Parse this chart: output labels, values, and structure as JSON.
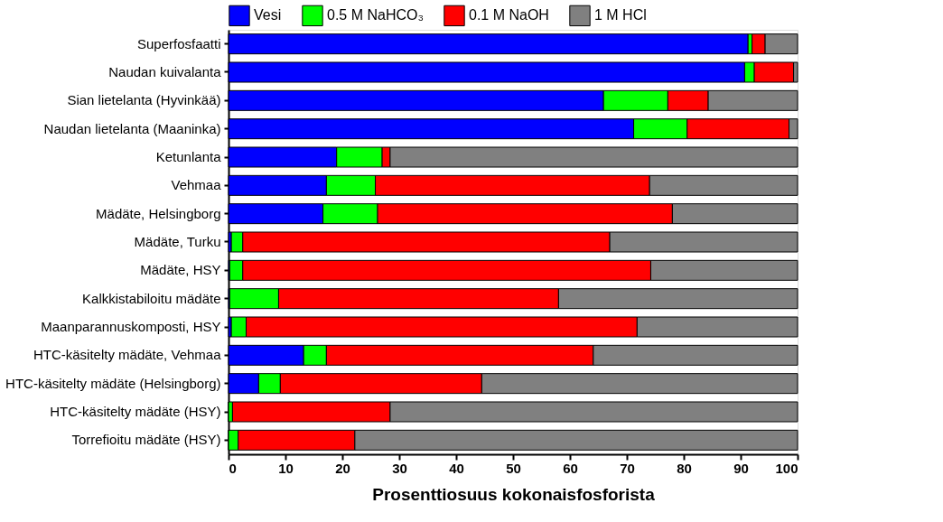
{
  "chart_data": {
    "type": "bar",
    "orientation": "horizontal",
    "stacked": true,
    "xlabel": "Prosenttiosuus kokonaisfosforista",
    "categories": [
      "Superfosfaatti",
      "Naudan kuivalanta",
      "Sian lietelanta (Hyvinkää)",
      "Naudan lietelanta (Maaninka)",
      "Ketunlanta",
      "Vehmaa",
      "Mädäte, Helsingborg",
      "Mädäte, Turku",
      "Mädäte, HSY",
      "Kalkkistabiloitu mädäte",
      "Maanparannuskomposti, HSY",
      "HTC-käsitelty mädäte, Vehmaa",
      "HTC-käsitelty mädäte (Helsingborg)",
      "HTC-käsitelty mädäte (HSY)",
      "Torrefioitu mädäte (HSY)"
    ],
    "series": [
      {
        "name": "Vesi",
        "color": "#0000ff",
        "values": [
          91.3,
          90.7,
          65.9,
          71.2,
          19.0,
          17.2,
          16.6,
          0.5,
          0.2,
          0.2,
          0.5,
          13.2,
          5.3,
          0,
          0
        ]
      },
      {
        "name": "0.5 M NaHCO₃",
        "color": "#00ff00",
        "values": [
          0.7,
          1.7,
          11.3,
          9.4,
          8.0,
          8.6,
          9.6,
          2.0,
          2.3,
          8.6,
          2.6,
          4.0,
          3.8,
          0.7,
          1.7
        ]
      },
      {
        "name": "0.1 M NaOH",
        "color": "#ff0000",
        "values": [
          2.3,
          6.9,
          7.1,
          17.9,
          1.4,
          48.2,
          51.8,
          64.5,
          71.7,
          49.2,
          68.7,
          46.9,
          35.4,
          27.7,
          20.5
        ]
      },
      {
        "name": "1 M HCl",
        "color": "#808080",
        "values": [
          5.7,
          0.7,
          15.7,
          1.5,
          71.6,
          26.0,
          22.0,
          33.0,
          25.8,
          42.0,
          28.2,
          35.9,
          55.5,
          71.6,
          77.8
        ]
      }
    ],
    "xlim": [
      0,
      100
    ],
    "xticks": [
      0,
      10,
      20,
      30,
      40,
      50,
      60,
      70,
      80,
      90,
      100
    ],
    "grid": false,
    "legend": "top"
  }
}
